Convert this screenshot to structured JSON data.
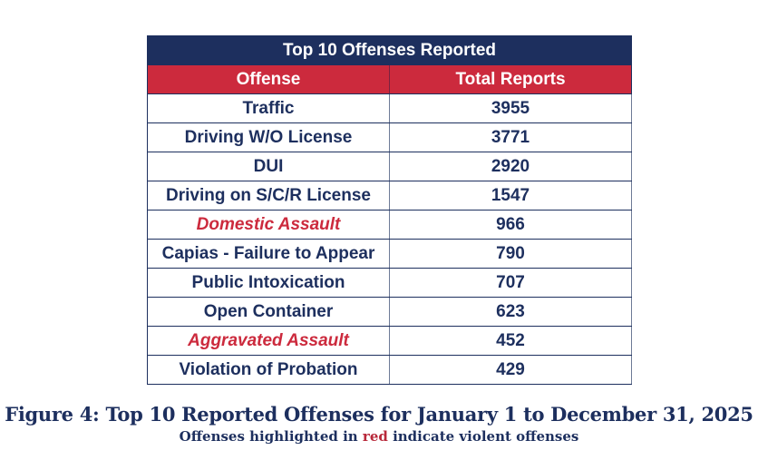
{
  "table": {
    "title": "Top 10 Offenses Reported",
    "headers": [
      "Offense",
      "Total Reports"
    ],
    "rows": [
      {
        "offense": "Traffic",
        "total": "3955",
        "violent": false
      },
      {
        "offense": "Driving W/O License",
        "total": "3771",
        "violent": false
      },
      {
        "offense": "DUI",
        "total": "2920",
        "violent": false
      },
      {
        "offense": "Driving on S/C/R License",
        "total": "1547",
        "violent": false
      },
      {
        "offense": "Domestic Assault",
        "total": "966",
        "violent": true
      },
      {
        "offense": "Capias - Failure to Appear",
        "total": "790",
        "violent": false
      },
      {
        "offense": "Public Intoxication",
        "total": "707",
        "violent": false
      },
      {
        "offense": "Open Container",
        "total": "623",
        "violent": false
      },
      {
        "offense": "Aggravated Assault",
        "total": "452",
        "violent": true
      },
      {
        "offense": "Violation of Probation",
        "total": "429",
        "violent": false
      }
    ]
  },
  "caption": {
    "title": "Figure 4: Top 10 Reported Offenses for January 1 to December 31, 2025",
    "note_before": "Offenses highlighted in ",
    "note_highlight": "red",
    "note_after": " indicate violent offenses"
  },
  "colors": {
    "navy": "#1d2f5e",
    "red": "#cc2a3d"
  }
}
